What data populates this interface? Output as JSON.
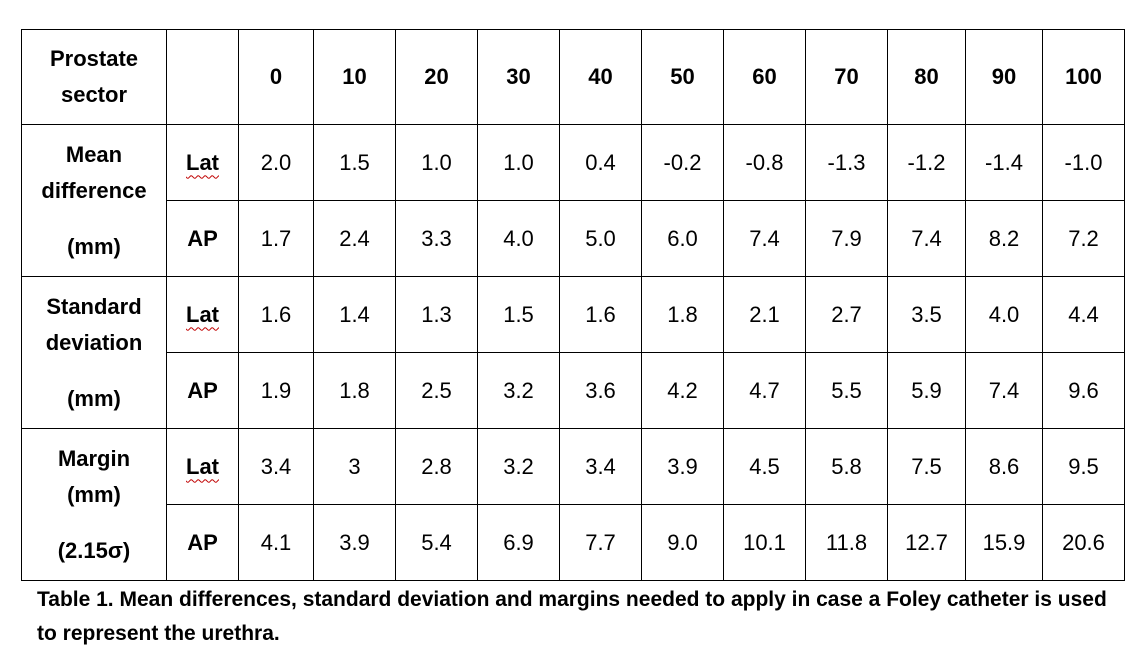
{
  "table": {
    "header": {
      "sector_label": "Prostate sector",
      "columns": [
        "0",
        "10",
        "20",
        "30",
        "40",
        "50",
        "60",
        "70",
        "80",
        "90",
        "100"
      ]
    },
    "groups": [
      {
        "label_lines": [
          "Mean",
          "difference",
          "(mm)"
        ],
        "rows": [
          {
            "label": "Lat",
            "values": [
              "2.0",
              "1.5",
              "1.0",
              "1.0",
              "0.4",
              "-0.2",
              "-0.8",
              "-1.3",
              "-1.2",
              "-1.4",
              "-1.0"
            ]
          },
          {
            "label": "AP",
            "values": [
              "1.7",
              "2.4",
              "3.3",
              "4.0",
              "5.0",
              "6.0",
              "7.4",
              "7.9",
              "7.4",
              "8.2",
              "7.2"
            ]
          }
        ]
      },
      {
        "label_lines": [
          "Standard",
          "deviation",
          "(mm)"
        ],
        "rows": [
          {
            "label": "Lat",
            "values": [
              "1.6",
              "1.4",
              "1.3",
              "1.5",
              "1.6",
              "1.8",
              "2.1",
              "2.7",
              "3.5",
              "4.0",
              "4.4"
            ]
          },
          {
            "label": "AP",
            "values": [
              "1.9",
              "1.8",
              "2.5",
              "3.2",
              "3.6",
              "4.2",
              "4.7",
              "5.5",
              "5.9",
              "7.4",
              "9.6"
            ]
          }
        ]
      },
      {
        "label_lines": [
          "Margin",
          "(mm)",
          "(2.15σ)"
        ],
        "rows": [
          {
            "label": "Lat",
            "values": [
              "3.4",
              "3",
              "2.8",
              "3.2",
              "3.4",
              "3.9",
              "4.5",
              "5.8",
              "7.5",
              "8.6",
              "9.5"
            ]
          },
          {
            "label": "AP",
            "values": [
              "4.1",
              "3.9",
              "5.4",
              "6.9",
              "7.7",
              "9.0",
              "10.1",
              "11.8",
              "12.7",
              "15.9",
              "20.6"
            ]
          }
        ]
      }
    ]
  },
  "caption": "Table 1. Mean differences, standard deviation and margins needed to apply in case a Foley catheter is used to represent the urethra."
}
